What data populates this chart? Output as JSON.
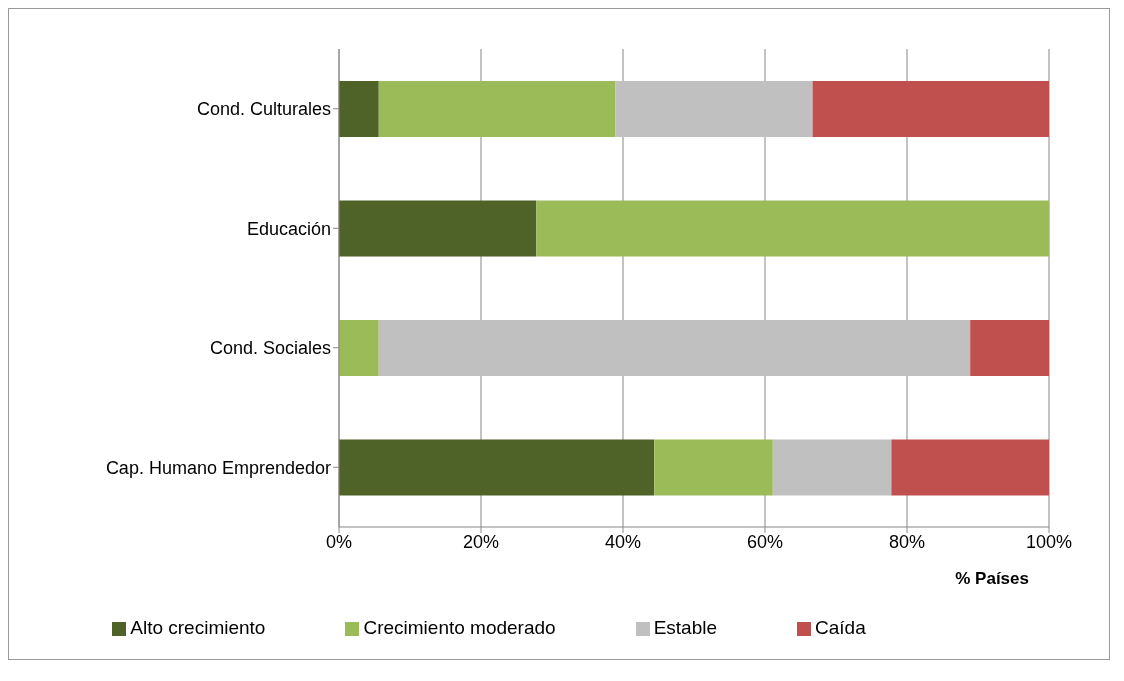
{
  "chart_data": {
    "type": "bar",
    "orientation": "horizontal",
    "stacked": true,
    "xlabel": "% Países",
    "categories": [
      "Cond. Culturales",
      "Educación",
      "Cond. Sociales",
      "Cap. Humano Emprendedor"
    ],
    "series": [
      {
        "name": "Alto crecimiento",
        "color": "#4f6228",
        "values": [
          5.6,
          27.8,
          0,
          44.4
        ]
      },
      {
        "name": "Crecimiento moderado",
        "color": "#9bbb59",
        "values": [
          33.3,
          72.2,
          5.6,
          16.7
        ]
      },
      {
        "name": "Estable",
        "color": "#c0c0c0",
        "values": [
          27.8,
          0,
          83.3,
          16.7
        ]
      },
      {
        "name": "Caída",
        "color": "#c0504d",
        "values": [
          33.3,
          0,
          11.1,
          22.2
        ]
      }
    ],
    "xlim": [
      0,
      100
    ],
    "xticks": [
      {
        "value": 0,
        "label": "0%"
      },
      {
        "value": 20,
        "label": "20%"
      },
      {
        "value": 40,
        "label": "40%"
      },
      {
        "value": 60,
        "label": "60%"
      },
      {
        "value": 80,
        "label": "80%"
      },
      {
        "value": 100,
        "label": "100%"
      }
    ],
    "grid": "x",
    "legend": "bottom"
  }
}
